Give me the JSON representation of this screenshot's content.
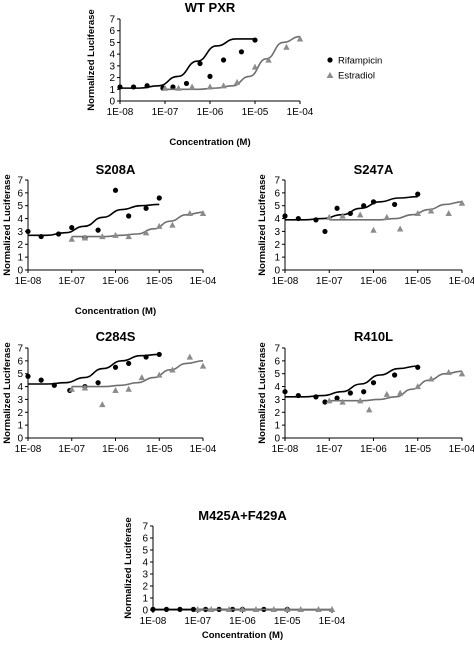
{
  "legend": {
    "rifampicin": "Rifampicin",
    "estradiol": "Estradiol",
    "placement": "right of top panel"
  },
  "colors": {
    "rifampicin": "#000000",
    "estradiol": "#8c8c8c",
    "axis": "#000000"
  },
  "chart_data": [
    {
      "type": "scatter",
      "title": "WT PXR",
      "xlabel": "Concentration (M)",
      "ylabel": "Normalized Luciferase",
      "xscale": "log",
      "xlim": [
        1e-08,
        0.0001
      ],
      "ylim": [
        0,
        7
      ],
      "xticks": [
        "1E-08",
        "1E-07",
        "1E-06",
        "1E-05",
        "1E-04"
      ],
      "yticks": [
        "0",
        "1",
        "2",
        "3",
        "4",
        "5",
        "6",
        "7"
      ],
      "grid": false,
      "series": [
        {
          "name": "Rifampicin",
          "marker": "circle",
          "x": [
            1e-08,
            2e-08,
            4e-08,
            9e-08,
            1.5e-07,
            3e-07,
            6e-07,
            1e-06,
            2e-06,
            5e-06,
            1e-05
          ],
          "y": [
            1.2,
            1.2,
            1.3,
            1.1,
            1.2,
            1.5,
            3.2,
            2.1,
            3.5,
            4.2,
            5.2
          ],
          "curve": [
            1.1,
            1.1,
            1.3,
            2.1,
            3.4,
            4.7,
            5.3,
            5.3
          ]
        },
        {
          "name": "Estradiol",
          "marker": "triangle",
          "x": [
            1e-07,
            2e-07,
            4e-07,
            1e-06,
            2e-06,
            4e-06,
            1e-05,
            2e-05,
            5e-05,
            0.0001
          ],
          "y": [
            1.1,
            1.1,
            1.2,
            1.2,
            1.3,
            1.6,
            2.9,
            3.5,
            4.6,
            5.3
          ],
          "curve": [
            1.0,
            1.0,
            1.0,
            1.1,
            1.3,
            2.1,
            3.6,
            5.0,
            5.5
          ]
        }
      ]
    },
    {
      "type": "scatter",
      "title": "S208A",
      "xlabel": "Concentration (M)",
      "ylabel": "Normalized Luciferase",
      "xscale": "log",
      "xlim": [
        1e-08,
        0.0001
      ],
      "ylim": [
        0,
        7
      ],
      "xticks": [
        "1E-08",
        "1E-07",
        "1E-06",
        "1E-05",
        "1E-04"
      ],
      "yticks": [
        "0",
        "1",
        "2",
        "3",
        "4",
        "5",
        "6",
        "7"
      ],
      "grid": false,
      "series": [
        {
          "name": "Rifampicin",
          "marker": "circle",
          "x": [
            1e-08,
            2e-08,
            5e-08,
            1e-07,
            2e-07,
            4e-07,
            1e-06,
            2e-06,
            5e-06,
            1e-05
          ],
          "y": [
            3.0,
            2.6,
            2.8,
            3.3,
            2.5,
            3.1,
            6.2,
            4.2,
            4.8,
            5.6
          ],
          "curve": [
            2.7,
            2.7,
            2.9,
            3.4,
            4.1,
            4.7,
            5.0,
            5.1
          ]
        },
        {
          "name": "Estradiol",
          "marker": "triangle",
          "x": [
            1e-07,
            2e-07,
            5e-07,
            1e-06,
            2e-06,
            5e-06,
            1e-05,
            2e-05,
            5e-05,
            0.0001
          ],
          "y": [
            2.4,
            2.5,
            2.6,
            2.7,
            2.6,
            2.9,
            3.4,
            3.5,
            4.4,
            4.4
          ],
          "curve": [
            2.6,
            2.6,
            2.6,
            2.7,
            2.8,
            3.2,
            3.8,
            4.3,
            4.5
          ]
        }
      ]
    },
    {
      "type": "scatter",
      "title": "S247A",
      "xlabel": "",
      "ylabel": "Normalized Luciferase",
      "xscale": "log",
      "xlim": [
        1e-08,
        0.0001
      ],
      "ylim": [
        0,
        7
      ],
      "xticks": [
        "1E-08",
        "1E-07",
        "1E-06",
        "1E-05",
        "1E-04"
      ],
      "yticks": [
        "0",
        "1",
        "2",
        "3",
        "4",
        "5",
        "6",
        "7"
      ],
      "grid": false,
      "series": [
        {
          "name": "Rifampicin",
          "marker": "circle",
          "x": [
            1e-08,
            2e-08,
            5e-08,
            8e-08,
            1.5e-07,
            3e-07,
            6e-07,
            1e-06,
            3e-06,
            1e-05
          ],
          "y": [
            4.2,
            4.0,
            3.9,
            3.0,
            4.8,
            4.4,
            5.0,
            5.3,
            5.1,
            5.9
          ],
          "curve": [
            3.9,
            3.9,
            4.0,
            4.3,
            4.8,
            5.3,
            5.6,
            5.7
          ]
        },
        {
          "name": "Estradiol",
          "marker": "triangle",
          "x": [
            1e-07,
            2e-07,
            5e-07,
            1e-06,
            2e-06,
            4e-06,
            1e-05,
            2e-05,
            5e-05,
            0.0001
          ],
          "y": [
            4.1,
            4.2,
            4.3,
            3.1,
            4.1,
            3.2,
            4.4,
            4.6,
            4.4,
            5.2
          ],
          "curve": [
            3.9,
            3.9,
            3.9,
            3.9,
            4.0,
            4.3,
            4.7,
            5.1,
            5.3
          ]
        }
      ]
    },
    {
      "type": "scatter",
      "title": "C284S",
      "xlabel": "",
      "ylabel": "Normalized Luciferase",
      "xscale": "log",
      "xlim": [
        1e-08,
        0.0001
      ],
      "ylim": [
        0,
        7
      ],
      "xticks": [
        "1E-08",
        "1E-07",
        "1E-06",
        "1E-05",
        "1E-04"
      ],
      "yticks": [
        "0",
        "1",
        "2",
        "3",
        "4",
        "5",
        "6",
        "7"
      ],
      "grid": false,
      "series": [
        {
          "name": "Rifampicin",
          "marker": "circle",
          "x": [
            1e-08,
            2e-08,
            4e-08,
            9e-08,
            2e-07,
            4e-07,
            1e-06,
            2e-06,
            5e-06,
            1e-05
          ],
          "y": [
            4.8,
            4.5,
            4.1,
            3.7,
            4.0,
            4.3,
            5.5,
            5.8,
            6.3,
            6.5
          ],
          "curve": [
            4.2,
            4.2,
            4.3,
            4.7,
            5.4,
            6.0,
            6.4,
            6.5
          ]
        },
        {
          "name": "Estradiol",
          "marker": "triangle",
          "x": [
            1e-07,
            2e-07,
            5e-07,
            1e-06,
            2e-06,
            4e-06,
            1e-05,
            2e-05,
            5e-05,
            0.0001
          ],
          "y": [
            3.8,
            3.9,
            2.6,
            3.7,
            3.8,
            4.7,
            4.9,
            5.3,
            6.3,
            5.6
          ],
          "curve": [
            4.0,
            4.0,
            4.0,
            4.1,
            4.3,
            4.7,
            5.3,
            5.8,
            6.0
          ]
        }
      ]
    },
    {
      "type": "scatter",
      "title": "R410L",
      "xlabel": "",
      "ylabel": "Normalized Luciferase",
      "xscale": "log",
      "xlim": [
        1e-08,
        0.0001
      ],
      "ylim": [
        0,
        7
      ],
      "xticks": [
        "1E-08",
        "1E-07",
        "1E-06",
        "1E-05",
        "1E-04"
      ],
      "yticks": [
        "0",
        "1",
        "2",
        "3",
        "4",
        "5",
        "6",
        "7"
      ],
      "grid": false,
      "series": [
        {
          "name": "Rifampicin",
          "marker": "circle",
          "x": [
            1e-08,
            2e-08,
            5e-08,
            8e-08,
            1.5e-07,
            3e-07,
            6e-07,
            1e-06,
            3e-06,
            1e-05
          ],
          "y": [
            3.6,
            3.3,
            3.2,
            2.8,
            3.1,
            3.5,
            3.6,
            4.3,
            4.9,
            5.5
          ],
          "curve": [
            3.2,
            3.2,
            3.3,
            3.6,
            4.2,
            4.9,
            5.4,
            5.6
          ]
        },
        {
          "name": "Estradiol",
          "marker": "triangle",
          "x": [
            1e-07,
            2e-07,
            5e-07,
            8e-07,
            2e-06,
            4e-06,
            1e-05,
            2e-05,
            5e-05,
            0.0001
          ],
          "y": [
            2.9,
            2.8,
            2.9,
            2.2,
            3.4,
            3.5,
            4.0,
            4.6,
            5.1,
            5.0
          ],
          "curve": [
            2.9,
            2.9,
            2.9,
            3.0,
            3.2,
            3.8,
            4.5,
            5.0,
            5.2
          ]
        }
      ]
    },
    {
      "type": "scatter",
      "title": "M425A+F429A",
      "xlabel": "Concentration (M)",
      "ylabel": "Normalized Luciferase",
      "xscale": "log",
      "xlim": [
        1e-08,
        0.0001
      ],
      "ylim": [
        0,
        7
      ],
      "xticks": [
        "1E-08",
        "1E-07",
        "1E-06",
        "1E-05",
        "1E-04"
      ],
      "yticks": [
        "0",
        "1",
        "2",
        "3",
        "4",
        "5",
        "6",
        "7"
      ],
      "grid": false,
      "series": [
        {
          "name": "Rifampicin",
          "marker": "circle",
          "x": [
            1e-08,
            2e-08,
            4e-08,
            8e-08,
            1.5e-07,
            3e-07,
            6e-07,
            1e-06,
            3e-06,
            1e-05
          ],
          "y": [
            0.05,
            0.05,
            0.05,
            0.05,
            0.05,
            0.05,
            0.05,
            0.05,
            0.05,
            0.05
          ],
          "curve": [
            0.05,
            0.05,
            0.05,
            0.05,
            0.05,
            0.05,
            0.05,
            0.05
          ]
        },
        {
          "name": "Estradiol",
          "marker": "triangle",
          "x": [
            1e-07,
            2e-07,
            5e-07,
            1e-06,
            2e-06,
            5e-06,
            1e-05,
            2e-05,
            5e-05,
            0.0001
          ],
          "y": [
            0.05,
            0.05,
            0.05,
            0.05,
            0.05,
            0.05,
            0.05,
            0.05,
            0.05,
            0.05
          ],
          "curve": [
            0.05,
            0.05,
            0.05,
            0.05,
            0.05,
            0.05,
            0.05,
            0.05,
            0.05
          ]
        }
      ]
    }
  ]
}
